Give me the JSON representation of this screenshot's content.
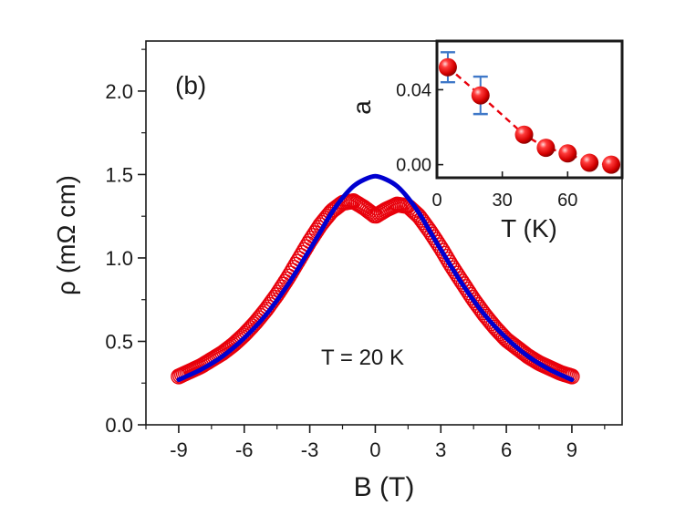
{
  "chart_data": [
    {
      "type": "scatter",
      "panel_label": "(b)",
      "annotation": "T = 20 K",
      "xlabel": "B (T)",
      "ylabel": "ρ (mΩ cm)",
      "xlim": [
        -10.5,
        11.3
      ],
      "ylim": [
        0,
        2.3
      ],
      "xticks": [
        -9,
        -6,
        -3,
        0,
        3,
        6,
        9
      ],
      "yticks": [
        0.0,
        0.5,
        1.0,
        1.5,
        2.0
      ],
      "xtick_labels": [
        "-9",
        "-6",
        "-3",
        "0",
        "3",
        "6",
        "9"
      ],
      "ytick_labels": [
        "0.0",
        "0.5",
        "1.0",
        "1.5",
        "2.0"
      ],
      "colors": {
        "data": "#e8000b",
        "fit": "#0000d0",
        "axis": "#1a1a1a"
      },
      "series": [
        {
          "name": "measured",
          "style": "open-circles",
          "x": [
            -9.0,
            -8.5,
            -8.0,
            -7.5,
            -7.0,
            -6.5,
            -6.0,
            -5.5,
            -5.0,
            -4.5,
            -4.0,
            -3.5,
            -3.0,
            -2.5,
            -2.0,
            -1.5,
            -1.0,
            -0.5,
            0.0,
            0.5,
            1.0,
            1.5,
            2.0,
            2.5,
            3.0,
            3.5,
            4.0,
            4.5,
            5.0,
            5.5,
            6.0,
            6.5,
            7.0,
            7.5,
            8.0,
            8.5,
            9.0
          ],
          "y": [
            0.29,
            0.32,
            0.35,
            0.39,
            0.43,
            0.48,
            0.54,
            0.61,
            0.69,
            0.78,
            0.88,
            0.99,
            1.1,
            1.2,
            1.28,
            1.33,
            1.34,
            1.3,
            1.25,
            1.29,
            1.32,
            1.31,
            1.25,
            1.16,
            1.06,
            0.95,
            0.85,
            0.75,
            0.66,
            0.58,
            0.51,
            0.46,
            0.41,
            0.37,
            0.34,
            0.31,
            0.29
          ]
        },
        {
          "name": "fit",
          "style": "line",
          "x": [
            -9.0,
            -8.0,
            -7.0,
            -6.0,
            -5.0,
            -4.0,
            -3.0,
            -2.5,
            -2.0,
            -1.5,
            -1.0,
            -0.5,
            0.0,
            0.5,
            1.0,
            1.5,
            2.0,
            2.5,
            3.0,
            4.0,
            5.0,
            6.0,
            7.0,
            8.0,
            9.0
          ],
          "y": [
            0.27,
            0.33,
            0.41,
            0.52,
            0.66,
            0.84,
            1.05,
            1.16,
            1.27,
            1.36,
            1.43,
            1.47,
            1.49,
            1.47,
            1.43,
            1.36,
            1.27,
            1.16,
            1.05,
            0.84,
            0.66,
            0.52,
            0.41,
            0.33,
            0.27
          ]
        }
      ]
    },
    {
      "type": "scatter",
      "inset": true,
      "xlabel": "T (K)",
      "ylabel": "a",
      "xlim": [
        0,
        85
      ],
      "ylim": [
        -0.007,
        0.066
      ],
      "xticks": [
        0,
        30,
        60
      ],
      "yticks": [
        0.0,
        0.04
      ],
      "xtick_labels": [
        "0",
        "30",
        "60"
      ],
      "ytick_labels": [
        "0.00",
        "0.04"
      ],
      "series": [
        {
          "name": "a(T)",
          "style": "filled-spheres-dashed",
          "x": [
            5,
            20,
            40,
            50,
            60,
            70,
            80
          ],
          "y": [
            0.052,
            0.037,
            0.016,
            0.009,
            0.006,
            0.001,
            0.0
          ],
          "error": [
            0.008,
            0.01,
            0,
            0,
            0,
            0,
            0
          ]
        }
      ]
    }
  ]
}
